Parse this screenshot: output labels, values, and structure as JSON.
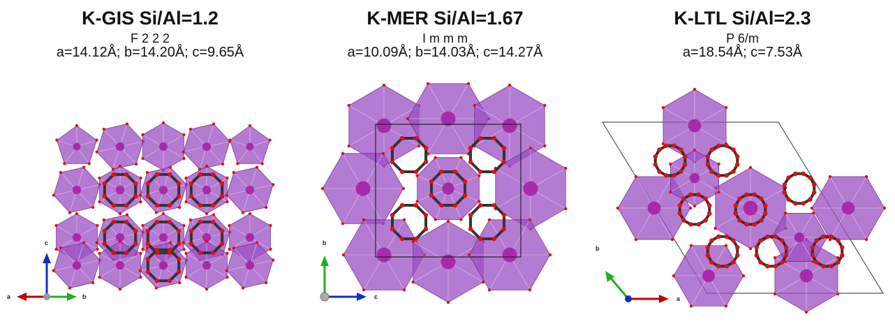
{
  "panels": [
    {
      "title": "K-GIS Si/Al=1.2",
      "space_group": "F 2 2 2",
      "cell": "a=14.12Å; b=14.20Å; c=9.65Å",
      "axes": {
        "right": "b",
        "left": "a",
        "up": "c"
      }
    },
    {
      "title": "K-MER Si/Al=1.67",
      "space_group": "I m m m",
      "cell": "a=10.09Å; b=14.03Å; c=14.27Å",
      "axes": {
        "right": "c",
        "up": "b"
      }
    },
    {
      "title": "K-LTL Si/Al=2.3",
      "space_group": "P 6/m",
      "cell": "a=18.54Å; c=7.53Å",
      "axes": {
        "right": "a",
        "diag": "b"
      }
    }
  ],
  "colors": {
    "polyhedron": "#9b4fc4",
    "polyhedron_light": "#c58ee0",
    "potassium": "#a82aa8",
    "oxygen": "#e01010",
    "silicon": "#333333",
    "axis_a": "#c00000",
    "axis_b": "#20b020",
    "axis_c": "#1030c0"
  }
}
